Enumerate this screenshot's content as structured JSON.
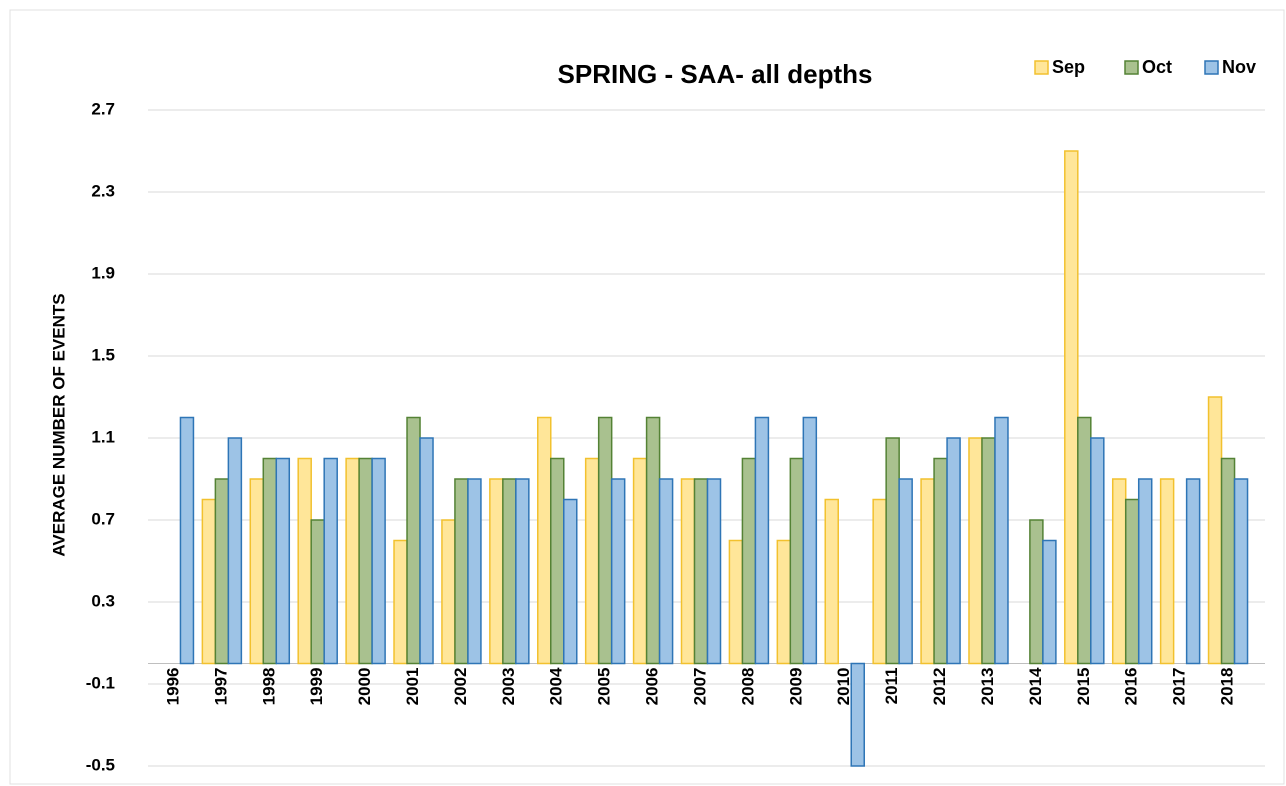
{
  "chart_data": {
    "type": "bar",
    "title": "SPRING - SAA- all depths",
    "y_label": "AVERAGE NUMBER OF EVENTS",
    "categories": [
      "1996",
      "1997",
      "1998",
      "1999",
      "2000",
      "2001",
      "2002",
      "2003",
      "2004",
      "2005",
      "2006",
      "2007",
      "2008",
      "2009",
      "2010",
      "2011",
      "2012",
      "2013",
      "2014",
      "2015",
      "2016",
      "2017",
      "2018"
    ],
    "series": [
      {
        "name": "Sep",
        "color": "#ffe699",
        "edge": "#f2c12e",
        "values": [
          0,
          0.8,
          0.9,
          1.0,
          1.0,
          0.6,
          0.7,
          0.9,
          1.2,
          1.0,
          1.0,
          0.9,
          0.6,
          0.6,
          0.8,
          0.8,
          0.9,
          1.1,
          0,
          2.5,
          0.9,
          0.9,
          1.3
        ]
      },
      {
        "name": "Oct",
        "color": "#a9c18f",
        "edge": "#548235",
        "values": [
          0,
          0.9,
          1.0,
          0.7,
          1.0,
          1.2,
          0.9,
          0.9,
          1.0,
          1.2,
          1.2,
          0.9,
          1.0,
          1.0,
          0,
          1.1,
          1.0,
          1.1,
          0.7,
          1.2,
          0.8,
          0,
          1.0
        ]
      },
      {
        "name": "Nov",
        "color": "#9dc3e6",
        "edge": "#2e75b6",
        "values": [
          1.2,
          1.1,
          1.0,
          1.0,
          1.0,
          1.1,
          0.9,
          0.9,
          0.8,
          0.9,
          0.9,
          0.9,
          1.2,
          1.2,
          -0.5,
          0.9,
          1.1,
          1.2,
          0.6,
          1.1,
          0.9,
          0.9,
          0.9
        ]
      }
    ],
    "ylim": [
      -0.5,
      2.7
    ],
    "yticks": [
      -0.5,
      -0.1,
      0.3,
      0.7,
      1.1,
      1.5,
      1.9,
      2.3,
      2.7
    ],
    "grid": true,
    "legend": "top-right"
  }
}
